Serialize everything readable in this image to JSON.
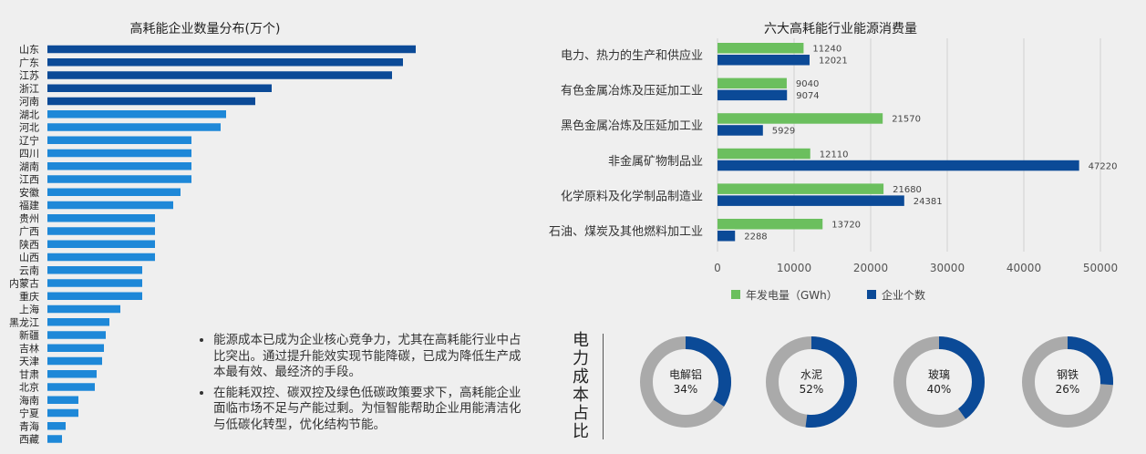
{
  "left_chart": {
    "title": "高耗能企业数量分布(万个)"
  },
  "right_chart": {
    "title": "六大高耗能行业能源消费量",
    "legend": {
      "series1": "年发电量（GWh）",
      "series2": "企业个数"
    }
  },
  "notes": [
    "能源成本已成为企业核心竞争力，尤其在高耗能行业中占比突出。通过提升能效实现节能降碳，已成为降低生产成本最有效、最经济的手段。",
    "在能耗双控、碳双控及绿色低碳政策要求下，高耗能企业面临市场不足与产能过剩。为恒智能帮助企业用能清洁化与低碳化转型，优化结构节能。"
  ],
  "donut_section_title": "电力成本占比",
  "colors": {
    "dark_blue": "#0b4a97",
    "light_blue": "#1e88d8",
    "green": "#6bbf5e",
    "gray": "#aaaaaa",
    "background": "#efefef"
  },
  "chart_data": [
    {
      "type": "bar",
      "orientation": "horizontal",
      "title": "高耗能企业数量分布(万个)",
      "categories": [
        "山东",
        "广东",
        "江苏",
        "浙江",
        "河南",
        "湖北",
        "河北",
        "辽宁",
        "四川",
        "湖南",
        "江西",
        "安徽",
        "福建",
        "贵州",
        "广西",
        "陕西",
        "山西",
        "云南",
        "内蒙古",
        "重庆",
        "上海",
        "黑龙江",
        "新疆",
        "吉林",
        "天津",
        "甘肃",
        "北京",
        "海南",
        "宁夏",
        "青海",
        "西藏"
      ],
      "values": [
        10.1,
        9.75,
        9.45,
        6.15,
        5.7,
        4.9,
        4.75,
        3.95,
        3.95,
        3.95,
        3.95,
        3.65,
        3.45,
        2.95,
        2.95,
        2.95,
        2.95,
        2.6,
        2.6,
        2.6,
        2.0,
        1.7,
        1.6,
        1.55,
        1.5,
        1.35,
        1.3,
        0.85,
        0.85,
        0.5,
        0.4
      ],
      "highlight_top": 5,
      "xlim": [
        0,
        11
      ]
    },
    {
      "type": "bar",
      "orientation": "horizontal",
      "title": "六大高耗能行业能源消费量",
      "categories": [
        "电力、热力的生产和供应业",
        "有色金属冶炼及压延加工业",
        "黑色金属冶炼及压延加工业",
        "非金属矿物制品业",
        "化学原料及化学制品制造业",
        "石油、煤炭及其他燃料加工业"
      ],
      "series": [
        {
          "name": "年发电量（GWh）",
          "values": [
            11240,
            9040,
            21570,
            12110,
            21680,
            13720
          ],
          "labels": [
            "11240",
            "9040",
            "21570",
            "12110",
            "21680",
            "13720"
          ]
        },
        {
          "name": "企业个数",
          "values": [
            12021,
            9074,
            5929,
            47220,
            24381,
            2288
          ],
          "labels": [
            "12021",
            "9074",
            "5929",
            "47220",
            "24381",
            "2288"
          ]
        }
      ],
      "xlim": [
        0,
        50000
      ],
      "xticks": [
        0,
        10000,
        20000,
        30000,
        40000,
        50000
      ],
      "xtick_labels": [
        "0",
        "10000",
        "20000",
        "30000",
        "40000",
        "50000"
      ],
      "grid": true,
      "legend_position": "bottom"
    },
    {
      "type": "pie",
      "subtype": "donut",
      "title": "电力成本占比",
      "items": [
        {
          "name": "电解铝",
          "percent": 34,
          "label": "34%"
        },
        {
          "name": "水泥",
          "percent": 52,
          "label": "52%"
        },
        {
          "name": "玻璃",
          "percent": 40,
          "label": "40%"
        },
        {
          "name": "钢铁",
          "percent": 26,
          "label": "26%"
        }
      ]
    }
  ]
}
